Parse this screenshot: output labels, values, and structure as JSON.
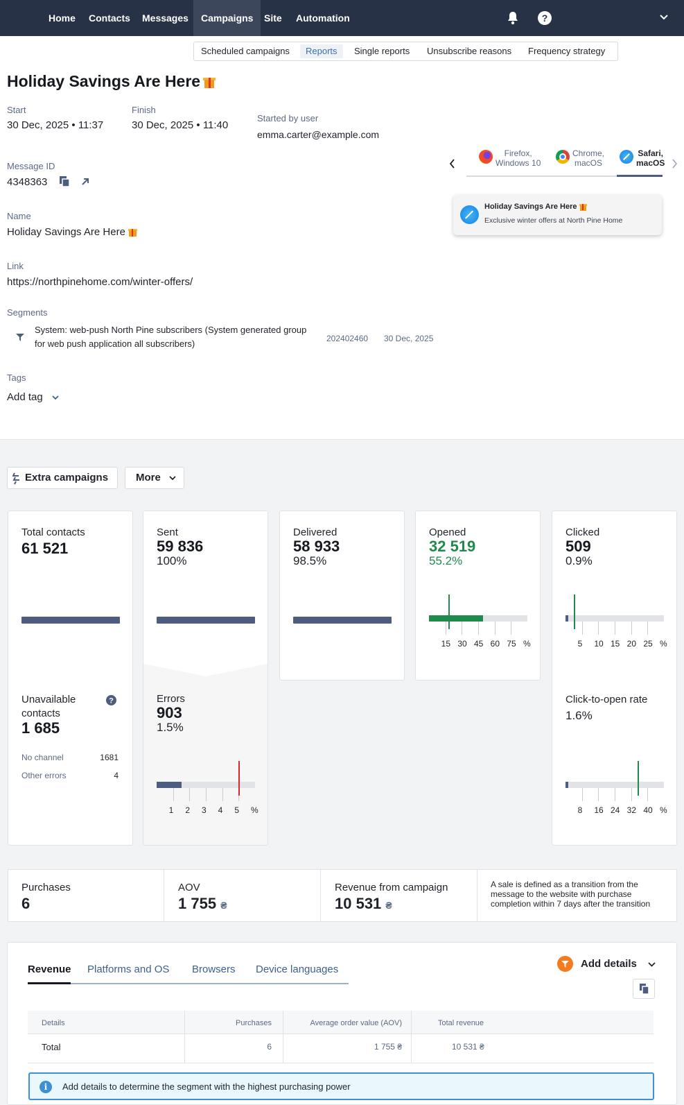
{
  "nav": {
    "items": [
      "Home",
      "Contacts",
      "Messages",
      "Campaigns",
      "Site",
      "Automation"
    ],
    "active": "Campaigns"
  },
  "subnav": {
    "items": [
      "Scheduled campaigns",
      "Reports",
      "Single reports",
      "Unsubscribe reasons",
      "Frequency strategy"
    ],
    "active": "Reports"
  },
  "campaign": {
    "title": "Holiday Savings Are Here",
    "start_label": "Start",
    "start_value": "30 Dec, 2025 • 11:37",
    "finish_label": "Finish",
    "finish_value": "30 Dec, 2025 • 11:40",
    "started_by_label": "Started by user",
    "started_by_value": "emma.carter@example.com",
    "message_id_label": "Message ID",
    "message_id_value": "4348363",
    "name_label": "Name",
    "name_value": "Holiday Savings Are Here",
    "link_label": "Link",
    "link_value": "https://northpinehome.com/winter-offers/",
    "segments_label": "Segments",
    "segment": {
      "name": "System: web-push North Pine subscribers (System generated group for web push application all subscribers)",
      "id": "202402460",
      "date": "30 Dec, 2025"
    },
    "tags_label": "Tags",
    "add_tag": "Add tag"
  },
  "browsers": {
    "tabs": [
      {
        "name": "Firefox,",
        "os": "Windows 10"
      },
      {
        "name": "Chrome,",
        "os": "macOS"
      },
      {
        "name": "Safari,",
        "os": "macOS"
      }
    ],
    "active": 2,
    "preview_title": "Holiday Savings Are Here",
    "preview_body": "Exclusive winter offers at North Pine Home"
  },
  "actions": {
    "extra_campaigns": "Extra campaigns",
    "more": "More"
  },
  "stats": {
    "total_contacts": {
      "label": "Total contacts",
      "value": "61 521"
    },
    "sent": {
      "label": "Sent",
      "value": "59 836",
      "pct": "100%"
    },
    "delivered": {
      "label": "Delivered",
      "value": "58 933",
      "pct": "98.5%"
    },
    "opened": {
      "label": "Opened",
      "value": "32 519",
      "pct": "55.2%",
      "ticks": [
        "15",
        "30",
        "45",
        "60",
        "75",
        "%"
      ],
      "fill": 0.55,
      "benchmark": 0.2
    },
    "clicked": {
      "label": "Clicked",
      "value": "509",
      "pct": "0.9%",
      "ticks": [
        "5",
        "10",
        "15",
        "20",
        "25",
        "%"
      ],
      "fill": 0.009,
      "benchmark": 0.085
    },
    "unavailable": {
      "label": "Unavailable contacts",
      "value": "1 685",
      "rows": [
        {
          "label": "No channel",
          "value": "1681"
        },
        {
          "label": "Other errors",
          "value": "4"
        }
      ]
    },
    "errors": {
      "label": "Errors",
      "value": "903",
      "pct": "1.5%",
      "ticks": [
        "1",
        "2",
        "3",
        "4",
        "5",
        "%"
      ],
      "fill": 0.25,
      "benchmark": 0.83
    },
    "ctor": {
      "label": "Click-to-open rate",
      "pct": "1.6%",
      "ticks": [
        "8",
        "16",
        "24",
        "32",
        "40",
        "%"
      ],
      "fill": 0.03,
      "benchmark": 0.73
    }
  },
  "metrics": {
    "purchases": {
      "label": "Purchases",
      "value": "6"
    },
    "aov": {
      "label": "AOV",
      "value": "1 755",
      "currency": "₴"
    },
    "revenue": {
      "label": "Revenue from campaign",
      "value": "10 531",
      "currency": "₴"
    },
    "note": "A sale is defined as a transition from the message to the website with purchase completion within 7 days after the transition"
  },
  "report": {
    "tabs": [
      "Revenue",
      "Platforms and OS",
      "Browsers",
      "Device languages"
    ],
    "active": "Revenue",
    "add_details": "Add details",
    "columns": [
      "Details",
      "Purchases",
      "Average order value (AOV)",
      "Total revenue"
    ],
    "row": {
      "details": "Total",
      "purchases": "6",
      "aov": "1 755 ₴",
      "total": "10 531 ₴"
    },
    "info": "Add details to determine the segment with the highest purchasing power"
  },
  "colors": {
    "nav": "#283246",
    "green": "#1f8a4c",
    "red": "#d8282c",
    "bar": "#4d5d80"
  }
}
